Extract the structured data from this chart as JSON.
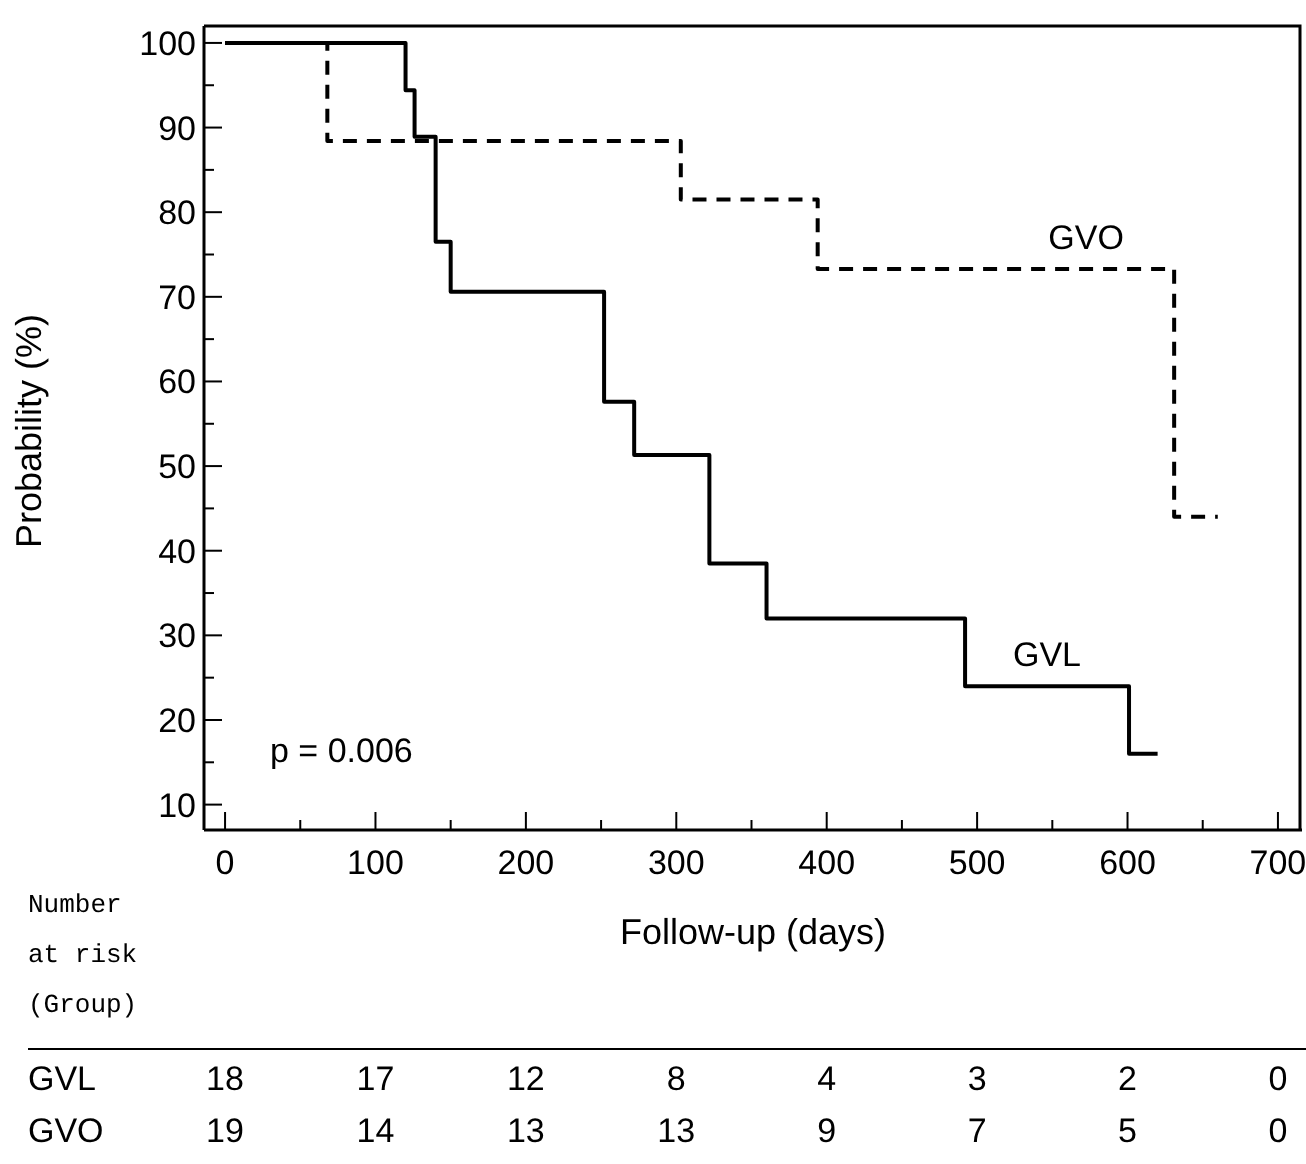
{
  "chart_data": {
    "type": "step",
    "xlabel": "Follow-up (days)",
    "ylabel": "Probability (%)",
    "series": [
      {
        "name": "GVL",
        "color": "#000000",
        "line_style": "solid",
        "x": [
          0,
          120,
          126,
          140,
          150,
          252,
          272,
          322,
          360,
          492,
          601,
          620
        ],
        "values": [
          100,
          94.4,
          88.9,
          76.5,
          70.6,
          57.6,
          51.3,
          38.5,
          32,
          24,
          16,
          16
        ]
      },
      {
        "name": "GVO",
        "color": "#000000",
        "line_style": "dashed",
        "x": [
          0,
          68,
          303,
          394,
          631,
          660
        ],
        "values": [
          100,
          88.4,
          81.5,
          73.3,
          44,
          44
        ]
      }
    ],
    "xlim": [
      -14,
      716
    ],
    "ylim": [
      7,
      102
    ],
    "xticks": [
      0,
      {
        "value": 50,
        "label": null
      },
      100,
      {
        "value": 150,
        "label": null
      },
      200,
      {
        "value": 250,
        "label": null
      },
      300,
      {
        "value": 350,
        "label": null
      },
      400,
      {
        "value": 450,
        "label": null
      },
      500,
      {
        "value": 550,
        "label": null
      },
      600,
      {
        "value": 650,
        "label": null
      },
      700
    ],
    "yticks": [
      10,
      {
        "value": 15,
        "label": null
      },
      20,
      {
        "value": 25,
        "label": null
      },
      30,
      {
        "value": 35,
        "label": null
      },
      40,
      {
        "value": 45,
        "label": null
      },
      50,
      {
        "value": 55,
        "label": null
      },
      60,
      {
        "value": 65,
        "label": null
      },
      70,
      {
        "value": 75,
        "label": null
      },
      80,
      {
        "value": 85,
        "label": null
      },
      90,
      {
        "value": 95,
        "label": null
      },
      100
    ],
    "marker": "none",
    "annotations": [
      "p = 0.006",
      "Number at risk (Group)",
      "GVL 18 17 12 8 4 3 2 0",
      "GVO 19 14 13 13 9 7 5 0"
    ]
  }
}
